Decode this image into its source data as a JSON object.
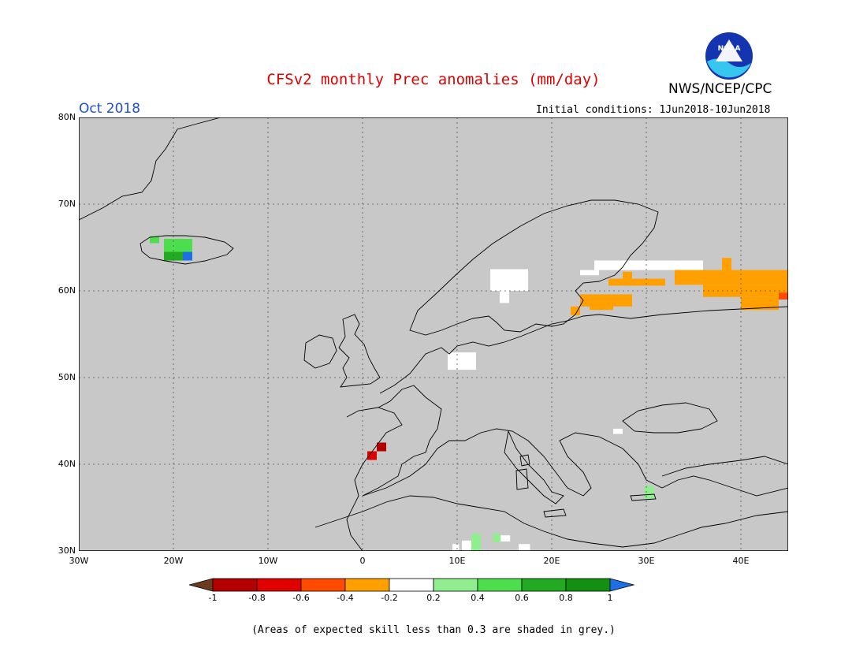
{
  "title": "CFSv2 monthly Prec anomalies (mm/day)",
  "agency": "NWS/NCEP/CPC",
  "logo_text": "NOAA",
  "month": "Oct 2018",
  "initial_conditions": "Initial conditions: 1Jun2018-10Jun2018",
  "footer": "(Areas of expected skill less than 0.3 are shaded in grey.)",
  "map": {
    "lon_range": [
      -30,
      45
    ],
    "lat_range": [
      30,
      80
    ],
    "lat_labels": [
      "80N",
      "70N",
      "60N",
      "50N",
      "40N",
      "30N"
    ],
    "lon_labels": [
      "30W",
      "20W",
      "10W",
      "0",
      "10E",
      "20E",
      "30E",
      "40E"
    ],
    "background_color": "#c8c8c8"
  },
  "colorbar": {
    "labels": [
      "-1",
      "-0.8",
      "-0.6",
      "-0.4",
      "-0.2",
      "0.2",
      "0.4",
      "0.6",
      "0.8",
      "1"
    ],
    "colors": [
      "#6b3a1f",
      "#b40000",
      "#e00000",
      "#ff4a00",
      "#ff9f00",
      "#ffffff",
      "#90ee90",
      "#4cde4c",
      "#22aa22",
      "#129012",
      "#1e6ee6"
    ]
  },
  "anomaly_cells": [
    {
      "lon": -21,
      "lat": 64.5,
      "w": 3,
      "h": 1.5,
      "color": "#4cde4c"
    },
    {
      "lon": -21,
      "lat": 63.5,
      "w": 2,
      "h": 1,
      "color": "#22aa22"
    },
    {
      "lon": -19,
      "lat": 63.5,
      "w": 1,
      "h": 1,
      "color": "#1e6ee6"
    },
    {
      "lon": -22.5,
      "lat": 65.5,
      "w": 1,
      "h": 0.8,
      "color": "#4cde4c"
    },
    {
      "lon": 13.5,
      "lat": 60,
      "w": 4,
      "h": 2.5,
      "color": "#ffffff"
    },
    {
      "lon": 14.5,
      "lat": 58.6,
      "w": 1,
      "h": 1.4,
      "color": "#ffffff"
    },
    {
      "lon": 24.5,
      "lat": 62.4,
      "w": 11.5,
      "h": 1.1,
      "color": "#ffffff"
    },
    {
      "lon": 23,
      "lat": 61.8,
      "w": 2,
      "h": 0.6,
      "color": "#ffffff"
    },
    {
      "lon": 26,
      "lat": 60.6,
      "w": 6,
      "h": 0.8,
      "color": "#ff9f00"
    },
    {
      "lon": 27.5,
      "lat": 61.4,
      "w": 1,
      "h": 0.8,
      "color": "#ff9f00"
    },
    {
      "lon": 33,
      "lat": 60.7,
      "w": 12,
      "h": 1.7,
      "color": "#ff9f00"
    },
    {
      "lon": 38,
      "lat": 62.4,
      "w": 1,
      "h": 1.4,
      "color": "#ff9f00"
    },
    {
      "lon": 36,
      "lat": 59.3,
      "w": 9,
      "h": 1.4,
      "color": "#ff9f00"
    },
    {
      "lon": 40,
      "lat": 57.8,
      "w": 4,
      "h": 1.5,
      "color": "#ff9f00"
    },
    {
      "lon": 44,
      "lat": 59,
      "w": 1,
      "h": 0.8,
      "color": "#ff4a00"
    },
    {
      "lon": 23,
      "lat": 58.2,
      "w": 5.5,
      "h": 1.4,
      "color": "#ff9f00"
    },
    {
      "lon": 22,
      "lat": 57.2,
      "w": 1,
      "h": 1,
      "color": "#ff9f00"
    },
    {
      "lon": 24,
      "lat": 57.8,
      "w": 2.5,
      "h": 0.6,
      "color": "#ff9f00"
    },
    {
      "lon": 9,
      "lat": 50.9,
      "w": 3,
      "h": 2,
      "color": "#ffffff"
    },
    {
      "lon": 1.5,
      "lat": 41.5,
      "w": 1,
      "h": 1,
      "color": "#b40000"
    },
    {
      "lon": 0.5,
      "lat": 40.5,
      "w": 1,
      "h": 1,
      "color": "#e00000"
    },
    {
      "lon": 26.5,
      "lat": 43.5,
      "w": 1,
      "h": 0.6,
      "color": "#ffffff"
    },
    {
      "lon": 29.8,
      "lat": 36,
      "w": 1,
      "h": 1.5,
      "color": "#90ee90"
    },
    {
      "lon": 11.5,
      "lat": 30,
      "w": 1,
      "h": 2,
      "color": "#90ee90"
    },
    {
      "lon": 10.5,
      "lat": 30,
      "w": 1,
      "h": 1.2,
      "color": "#ffffff"
    },
    {
      "lon": 13.8,
      "lat": 31,
      "w": 0.8,
      "h": 1,
      "color": "#90ee90"
    },
    {
      "lon": 14.6,
      "lat": 31.1,
      "w": 1,
      "h": 0.7,
      "color": "#ffffff"
    },
    {
      "lon": 16.5,
      "lat": 30,
      "w": 1.2,
      "h": 0.8,
      "color": "#ffffff"
    },
    {
      "lon": 9.5,
      "lat": 30,
      "w": 0.7,
      "h": 0.8,
      "color": "#ffffff"
    }
  ]
}
